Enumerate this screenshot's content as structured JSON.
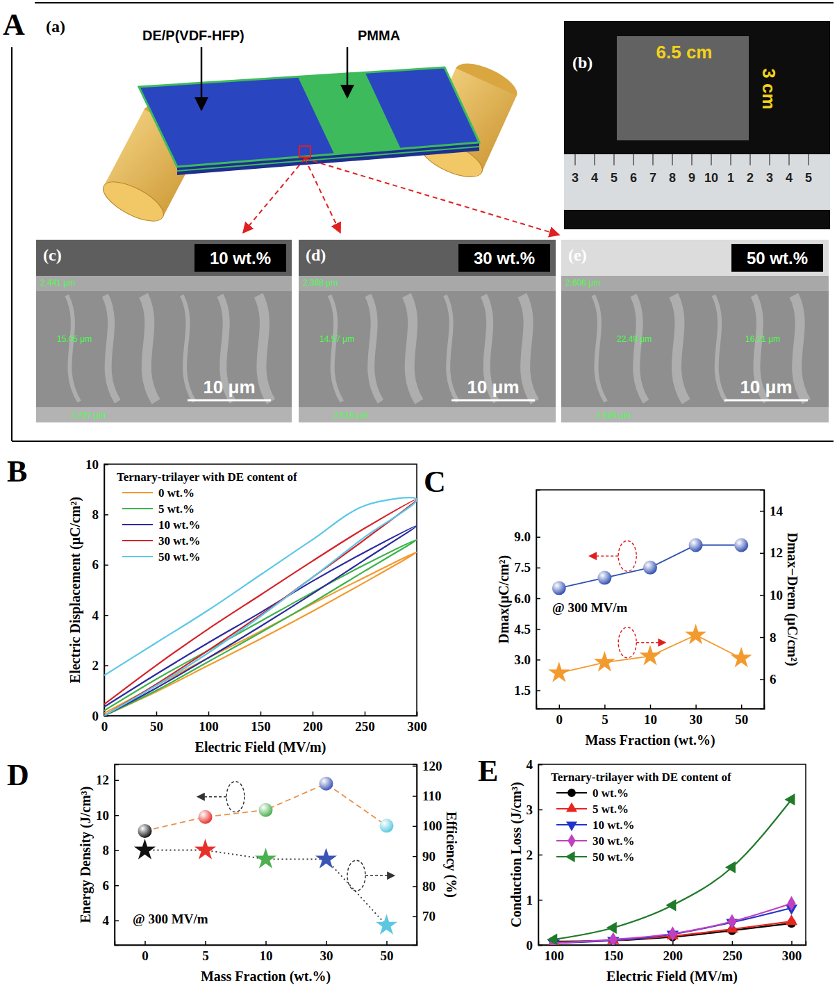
{
  "diagram": {
    "panel_label": "A",
    "schematic": {
      "label": "(a)",
      "layer_labels": [
        "DE/P(VDF-HFP)",
        "PMMA"
      ]
    },
    "photo": {
      "label": "(b)",
      "width_label": "6.5 cm",
      "height_label": "3 cm",
      "ruler_labels": [
        "3",
        "4",
        "5",
        "6",
        "7",
        "8",
        "9",
        "10",
        "1",
        "2",
        "3",
        "4",
        "5"
      ]
    },
    "sem_images": [
      {
        "label": "(c)",
        "content": "10 wt.%",
        "scale_bar": "10 μm",
        "thickness_labels": [
          "2.441 μm",
          "15.05 μm",
          "2.237 μm"
        ]
      },
      {
        "label": "(d)",
        "content": "30 wt.%",
        "scale_bar": "10 μm",
        "thickness_labels": [
          "2.368 μm",
          "14.57 μm",
          "2.518 μm"
        ]
      },
      {
        "label": "(e)",
        "content": "50 wt.%",
        "scale_bar": "10 μm",
        "thickness_labels": [
          "2.606 μm",
          "22.49 μm",
          "16.21 μm",
          "2.845 μm"
        ]
      }
    ]
  },
  "chart_data": [
    {
      "panel_label": "B",
      "type": "line",
      "x_label": "Electric Field (MV/m)",
      "y_label": "Electric Displacement (μC/cm²)",
      "legend_title": "Ternary-trilayer with DE content of",
      "legend": "upper left",
      "xlim": [
        0,
        300
      ],
      "xticks": [
        0,
        50,
        100,
        150,
        200,
        250,
        300
      ],
      "ylim": [
        0,
        10
      ],
      "yticks": [
        0,
        2,
        4,
        6,
        8,
        10
      ],
      "series": [
        {
          "name": "0 wt.%",
          "color": "#f39a2e",
          "x": [
            0,
            50,
            100,
            150,
            200,
            250,
            300,
            250,
            200,
            150,
            100,
            50,
            0
          ],
          "values": [
            0,
            0.95,
            2.0,
            3.05,
            4.15,
            5.3,
            6.5,
            5.5,
            4.45,
            3.35,
            2.3,
            1.2,
            0.1
          ]
        },
        {
          "name": "5 wt.%",
          "color": "#3cb44b",
          "x": [
            0,
            50,
            100,
            150,
            200,
            250,
            300,
            250,
            200,
            150,
            100,
            50,
            0
          ],
          "values": [
            0,
            1.0,
            2.15,
            3.3,
            4.5,
            5.75,
            7.0,
            6.0,
            4.9,
            3.75,
            2.6,
            1.45,
            0.2
          ]
        },
        {
          "name": "10 wt.%",
          "color": "#2b2ba0",
          "x": [
            0,
            50,
            100,
            150,
            200,
            250,
            300,
            250,
            200,
            150,
            100,
            50,
            0
          ],
          "values": [
            0,
            1.1,
            2.3,
            3.55,
            4.85,
            6.2,
            7.55,
            6.5,
            5.35,
            4.1,
            2.9,
            1.65,
            0.35
          ]
        },
        {
          "name": "30 wt.%",
          "color": "#d6212a",
          "x": [
            0,
            50,
            100,
            150,
            200,
            250,
            300,
            250,
            200,
            150,
            100,
            50,
            0
          ],
          "values": [
            0,
            1.25,
            2.6,
            4.0,
            5.5,
            7.0,
            8.6,
            7.45,
            6.15,
            4.8,
            3.45,
            2.0,
            0.45
          ]
        },
        {
          "name": "50 wt.%",
          "color": "#5bc8e8",
          "x": [
            0,
            50,
            100,
            150,
            200,
            250,
            300,
            250,
            200,
            150,
            100,
            50,
            0
          ],
          "values": [
            0,
            1.2,
            2.5,
            3.95,
            5.5,
            7.1,
            8.6,
            8.35,
            7.0,
            5.6,
            4.2,
            2.9,
            1.6
          ]
        }
      ]
    },
    {
      "panel_label": "C",
      "type": "line",
      "categories": [
        "0",
        "5",
        "10",
        "30",
        "50"
      ],
      "x_label": "Mass Fraction (wt.%)",
      "y_label": "Dmax(μC/cm²)",
      "y2_label": "Dmax−Drem (μC/cm²)",
      "annotation": "@ 300 MV/m",
      "ylim": [
        0.6,
        11.3
      ],
      "yticks": [
        1.5,
        {
          "value": 3,
          "label": "3.0"
        },
        4.5,
        {
          "value": 6,
          "label": "6.0"
        },
        7.5,
        {
          "value": 9,
          "label": "9.0"
        }
      ],
      "y2lim": [
        4.6,
        15.0
      ],
      "y2ticks": [
        6,
        8,
        10,
        12,
        14
      ],
      "series": [
        {
          "color": "#2f4fb0",
          "marker": "circle",
          "values": [
            6.5,
            7.0,
            7.5,
            8.6,
            8.6
          ]
        },
        {
          "color": "#f39a2e",
          "marker": "star",
          "axis": "y2",
          "values": [
            6.3,
            6.8,
            7.1,
            8.1,
            7.0
          ]
        }
      ]
    },
    {
      "panel_label": "D",
      "type": "line",
      "categories": [
        "0",
        "5",
        "10",
        "30",
        "50"
      ],
      "x_label": "Mass Fraction (wt.%)",
      "y_label": "Energy Density (J/cm³)",
      "y2_label": "Efficiency (%)",
      "annotation": "@ 300 MV/m",
      "ylim": [
        2.6,
        12.9
      ],
      "yticks": [
        4,
        6,
        8,
        10,
        12
      ],
      "y2lim": [
        60.5,
        120.5
      ],
      "y2ticks": [
        70,
        80,
        90,
        100,
        110,
        120
      ],
      "series": [
        {
          "color": "#e8924a",
          "colors": [
            "#111111",
            "#e8302a",
            "#4caf50",
            "#3a55b5",
            "#5bc8e0"
          ],
          "marker": "circle",
          "line_style": "dashed",
          "values": [
            9.1,
            9.9,
            10.3,
            11.8,
            9.4
          ]
        },
        {
          "color": "#333333",
          "colors": [
            "#111111",
            "#e8302a",
            "#4caf50",
            "#3a55b5",
            "#5bc8e0"
          ],
          "marker": "star",
          "line_style": "dotted",
          "axis": "y2",
          "values": [
            92,
            92,
            89,
            89,
            67
          ]
        }
      ]
    },
    {
      "panel_label": "E",
      "type": "line",
      "x_label": "Electric Field (MV/m)",
      "y_label": "Conduction Loss (J/cm³)",
      "legend_title": "Ternary-trilayer with DE content of",
      "legend": "upper left",
      "xlim": [
        87,
        312
      ],
      "xticks": [
        100,
        150,
        200,
        250,
        300
      ],
      "ylim": [
        0,
        4
      ],
      "yticks": [
        0,
        1,
        2,
        3,
        4
      ],
      "x": [
        100,
        150,
        200,
        250,
        300
      ],
      "series": [
        {
          "name": "0 wt.%",
          "color": "#000000",
          "marker": "circle",
          "values": [
            0.08,
            0.1,
            0.18,
            0.32,
            0.48
          ]
        },
        {
          "name": "5 wt.%",
          "color": "#e8251f",
          "marker": "triangle",
          "values": [
            0.06,
            0.1,
            0.2,
            0.35,
            0.52
          ]
        },
        {
          "name": "10 wt.%",
          "color": "#2233cc",
          "marker": "triangle-down",
          "values": [
            0.04,
            0.1,
            0.24,
            0.5,
            0.82
          ]
        },
        {
          "name": "30 wt.%",
          "color": "#c040c0",
          "marker": "diamond",
          "values": [
            0.04,
            0.12,
            0.25,
            0.52,
            0.92
          ]
        },
        {
          "name": "50 wt.%",
          "color": "#1f7a2a",
          "marker": "triangle-left",
          "values": [
            0.12,
            0.38,
            0.88,
            1.72,
            3.22
          ]
        }
      ]
    }
  ]
}
